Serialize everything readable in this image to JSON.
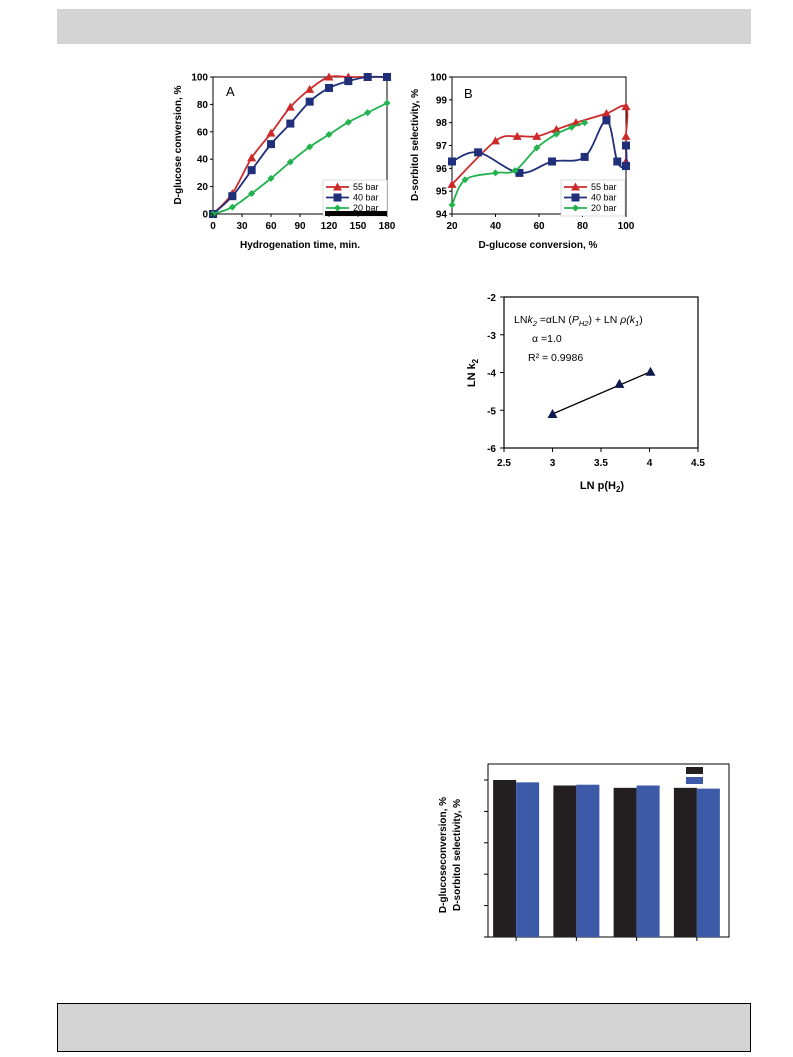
{
  "chart_data": [
    {
      "type": "line",
      "panel_label": "A",
      "xlabel": "Hydrogenation time, min.",
      "ylabel": "D-glucose conversion, %",
      "xlim": [
        0,
        180
      ],
      "ylim": [
        0,
        100
      ],
      "x_ticks": [
        "0",
        "30",
        "60",
        "90",
        "120",
        "150",
        "180"
      ],
      "y_ticks": [
        "0",
        "20",
        "40",
        "60",
        "80",
        "100"
      ],
      "legend_position": "bottom-right",
      "series": [
        {
          "name": "55 bar",
          "color": "#cc2a2a",
          "marker": "triangle",
          "points": [
            [
              0,
              0
            ],
            [
              20,
              15
            ],
            [
              40,
              41
            ],
            [
              60,
              59
            ],
            [
              80,
              78
            ],
            [
              100,
              91
            ],
            [
              120,
              100
            ],
            [
              140,
              100
            ],
            [
              160,
              100
            ],
            [
              180,
              100
            ]
          ]
        },
        {
          "name": "40 bar",
          "color": "#1f2f7a",
          "marker": "square",
          "points": [
            [
              0,
              0
            ],
            [
              20,
              13
            ],
            [
              40,
              32
            ],
            [
              60,
              51
            ],
            [
              80,
              66
            ],
            [
              100,
              82
            ],
            [
              120,
              92
            ],
            [
              140,
              97
            ],
            [
              160,
              100
            ],
            [
              180,
              100
            ]
          ]
        },
        {
          "name": "20 bar",
          "color": "#22b34f",
          "marker": "diamond",
          "points": [
            [
              0,
              0
            ],
            [
              20,
              5
            ],
            [
              40,
              15
            ],
            [
              60,
              26
            ],
            [
              80,
              38
            ],
            [
              100,
              49
            ],
            [
              120,
              58
            ],
            [
              140,
              67
            ],
            [
              160,
              74
            ],
            [
              180,
              81
            ]
          ]
        }
      ]
    },
    {
      "type": "line",
      "panel_label": "B",
      "xlabel": "D-glucose conversion, %",
      "ylabel": "D-sorbitol selectivity, %",
      "xlim": [
        20,
        100
      ],
      "ylim": [
        94,
        100
      ],
      "x_ticks": [
        "20",
        "40",
        "60",
        "80",
        "100"
      ],
      "y_ticks": [
        "94",
        "95",
        "96",
        "97",
        "98",
        "99",
        "100"
      ],
      "legend_position": "bottom-right",
      "series": [
        {
          "name": "55 bar",
          "color": "#cc2a2a",
          "marker": "triangle",
          "points": [
            [
              20,
              95.3
            ],
            [
              40,
              97.2
            ],
            [
              50,
              97.4
            ],
            [
              59,
              97.4
            ],
            [
              68,
              97.7
            ],
            [
              77,
              98.0
            ],
            [
              91,
              98.4
            ],
            [
              100,
              98.7
            ],
            [
              100,
              97.4
            ],
            [
              100,
              96.3
            ]
          ]
        },
        {
          "name": "40 bar",
          "color": "#1f2f7a",
          "marker": "square",
          "points": [
            [
              20,
              96.3
            ],
            [
              32,
              96.7
            ],
            [
              51,
              95.8
            ],
            [
              66,
              96.3
            ],
            [
              81,
              96.5
            ],
            [
              91,
              98.1
            ],
            [
              96,
              96.3
            ],
            [
              100,
              96.1
            ],
            [
              100,
              97.0
            ]
          ]
        },
        {
          "name": "20 bar",
          "color": "#22b34f",
          "marker": "diamond",
          "points": [
            [
              20,
              94.4
            ],
            [
              26,
              95.5
            ],
            [
              40,
              95.8
            ],
            [
              49,
              95.9
            ],
            [
              59,
              96.9
            ],
            [
              68,
              97.5
            ],
            [
              75,
              97.8
            ],
            [
              81,
              98.0
            ]
          ]
        }
      ]
    },
    {
      "type": "scatter",
      "xlabel_main": "LN p(H",
      "xlabel_sub": "2",
      "xlabel_end": ")",
      "ylabel_main": "LN k",
      "ylabel_sub": "2",
      "xlim": [
        2.5,
        4.5
      ],
      "ylim": [
        -6,
        -2
      ],
      "x_ticks": [
        "2.5",
        "3",
        "3.5",
        "4",
        "4.5"
      ],
      "y_ticks": [
        "-6",
        "-5",
        "-4",
        "-3",
        "-2"
      ],
      "equation_parts": [
        "LN",
        "k",
        "2",
        " =αLN (",
        "P",
        "H2",
        ") +   LN ",
        "ρ(k",
        "1",
        ")"
      ],
      "alpha": "α =1.0",
      "r2": "R² = 0.9986",
      "color": "#0d1b4d",
      "points": [
        [
          3.0,
          -5.1
        ],
        [
          3.69,
          -4.3
        ],
        [
          4.01,
          -3.98
        ]
      ]
    },
    {
      "type": "bar",
      "ylabel": [
        "D-glucoseconversion, %",
        "D-sorbitol selectivity, %"
      ],
      "categories": [
        "",
        "",
        "",
        ""
      ],
      "ylim": [
        0,
        100
      ],
      "series": [
        {
          "name": "",
          "color": "#231f20",
          "values": [
            100,
            96.5,
            95,
            95
          ]
        },
        {
          "name": "",
          "color": "#3d5aa8",
          "values": [
            98.5,
            97,
            96.5,
            94.5
          ]
        }
      ]
    }
  ]
}
